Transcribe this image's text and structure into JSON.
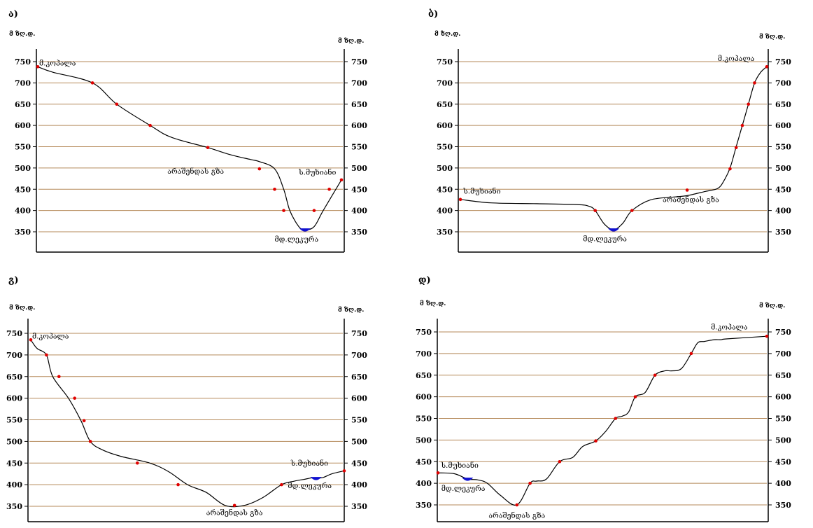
{
  "chart_data": [
    {
      "type": "line",
      "panel_label": "ა)",
      "unit_left": "მ ზღ.დ.",
      "unit_right": "მ ზღ.დ.",
      "yticks": [
        750,
        700,
        650,
        600,
        550,
        500,
        450,
        400,
        350
      ],
      "ylim": [
        310,
        780
      ],
      "xlim": [
        0,
        100
      ],
      "grid": true,
      "series": [
        {
          "x": [
            0,
            5,
            18,
            26,
            37,
            44,
            56,
            63,
            70,
            73,
            78,
            81,
            83,
            86,
            88,
            91,
            94,
            100
          ],
          "y": [
            738,
            725,
            700,
            650,
            600,
            572,
            548,
            532,
            520,
            515,
            498,
            450,
            400,
            362,
            355,
            362,
            400,
            472
          ]
        }
      ],
      "markers": [
        [
          0,
          738
        ],
        [
          18,
          700
        ],
        [
          26,
          650
        ],
        [
          37,
          600
        ],
        [
          56,
          548
        ],
        [
          73,
          498
        ],
        [
          78,
          450
        ],
        [
          81,
          400
        ],
        [
          91,
          400
        ],
        [
          96,
          450
        ],
        [
          100,
          472
        ]
      ],
      "water": [
        88,
        353
      ],
      "annotations": [
        {
          "text": "მ.კოპალა",
          "x": 0,
          "y": 738,
          "pos": "right-above"
        },
        {
          "text": "არაშენდას გზა",
          "x": 52,
          "y": 487,
          "pos": "center"
        },
        {
          "text": "ს.მუხიანი",
          "x": 86,
          "y": 484,
          "pos": "right"
        },
        {
          "text": "მდ.ლეკურა",
          "x": 78,
          "y": 327,
          "pos": "right"
        }
      ]
    },
    {
      "type": "line",
      "panel_label": "ბ)",
      "unit_left": "მ ზღ.დ.",
      "unit_right": "მ ზღ.დ.",
      "yticks": [
        750,
        700,
        650,
        600,
        550,
        500,
        450,
        400,
        350
      ],
      "ylim": [
        310,
        780
      ],
      "xlim": [
        0,
        100
      ],
      "grid": true,
      "series": [
        {
          "x": [
            0,
            10,
            25,
            38,
            42,
            44,
            47,
            50,
            53,
            56,
            62,
            70,
            74,
            80,
            84,
            86,
            88,
            90,
            92,
            94,
            96,
            98,
            100
          ],
          "y": [
            426,
            418,
            416,
            414,
            410,
            400,
            368,
            355,
            370,
            400,
            425,
            432,
            435,
            445,
            452,
            470,
            500,
            550,
            600,
            650,
            700,
            725,
            738
          ]
        }
      ],
      "markers": [
        [
          0,
          426
        ],
        [
          44,
          400
        ],
        [
          56,
          400
        ],
        [
          74,
          448
        ],
        [
          88,
          498
        ],
        [
          90,
          548
        ],
        [
          92,
          600
        ],
        [
          94,
          650
        ],
        [
          96,
          700
        ],
        [
          100,
          738
        ]
      ],
      "water": [
        50,
        353
      ],
      "annotations": [
        {
          "text": "ს.მუხიანი",
          "x": 1,
          "y": 440,
          "pos": "right"
        },
        {
          "text": "არაშენდას გზა",
          "x": 66,
          "y": 420,
          "pos": "right"
        },
        {
          "text": "მდ.ლეკურა",
          "x": 40,
          "y": 328,
          "pos": "right"
        },
        {
          "text": "მ.კოპალა",
          "x": 84,
          "y": 752,
          "pos": "right"
        }
      ]
    },
    {
      "type": "line",
      "panel_label": "გ)",
      "unit_left": "მ ზღ.დ.",
      "unit_right": "მ ზღ.დ.",
      "yticks": [
        750,
        700,
        650,
        600,
        550,
        500,
        450,
        400,
        350
      ],
      "ylim": [
        310,
        780
      ],
      "xlim": [
        0,
        100
      ],
      "grid": true,
      "series": [
        {
          "x": [
            0,
            2,
            5,
            7,
            12,
            16,
            19,
            23,
            29,
            38,
            44,
            50,
            56,
            62,
            68,
            74,
            80,
            84,
            87,
            90,
            93,
            96,
            100
          ],
          "y": [
            735,
            715,
            700,
            650,
            600,
            548,
            500,
            480,
            465,
            450,
            430,
            400,
            382,
            352,
            352,
            370,
            400,
            408,
            412,
            416,
            416,
            425,
            432
          ]
        }
      ],
      "markers": [
        [
          0,
          735
        ],
        [
          5,
          700
        ],
        [
          9,
          650
        ],
        [
          14,
          600
        ],
        [
          17,
          548
        ],
        [
          19,
          500
        ],
        [
          34,
          450
        ],
        [
          47,
          400
        ],
        [
          65,
          352
        ],
        [
          80,
          400
        ],
        [
          100,
          432
        ]
      ],
      "water": [
        91,
        413
      ],
      "annotations": [
        {
          "text": "მ.კოპალა",
          "x": 0,
          "y": 735,
          "pos": "right-above"
        },
        {
          "text": "არაშენდას გზა",
          "x": 65,
          "y": 330,
          "pos": "center"
        },
        {
          "text": "ს.მუხიანი",
          "x": 83,
          "y": 444,
          "pos": "right"
        },
        {
          "text": "მდ.ლეკურა",
          "x": 82,
          "y": 392,
          "pos": "right"
        }
      ]
    },
    {
      "type": "line",
      "panel_label": "დ)",
      "unit_left": "მ ზღ.დ.",
      "unit_right": "მ ზღ.დ.",
      "yticks": [
        750,
        700,
        650,
        600,
        550,
        500,
        450,
        400,
        350
      ],
      "ylim": [
        310,
        780
      ],
      "xlim": [
        0,
        100
      ],
      "grid": true,
      "series": [
        {
          "x": [
            0,
            5,
            9,
            12,
            15,
            19,
            24,
            28,
            30,
            33,
            37,
            41,
            44,
            48,
            51,
            54,
            56,
            58,
            60,
            63,
            66,
            69,
            71,
            74,
            77,
            79,
            81,
            84,
            86,
            88,
            100
          ],
          "y": [
            424,
            422,
            410,
            408,
            400,
            372,
            350,
            400,
            405,
            410,
            450,
            460,
            485,
            498,
            520,
            550,
            555,
            565,
            600,
            610,
            650,
            660,
            660,
            665,
            700,
            725,
            728,
            732,
            732,
            734,
            740
          ]
        }
      ],
      "markers": [
        [
          0,
          424
        ],
        [
          24,
          350
        ],
        [
          28,
          400
        ],
        [
          37,
          450
        ],
        [
          48,
          498
        ],
        [
          54,
          550
        ],
        [
          60,
          600
        ],
        [
          66,
          650
        ],
        [
          77,
          700
        ],
        [
          100,
          740
        ]
      ],
      "water": [
        9,
        408
      ],
      "annotations": [
        {
          "text": "ს.მუხიანი",
          "x": 1,
          "y": 436,
          "pos": "right"
        },
        {
          "text": "მდ.ლეკურა",
          "x": 1,
          "y": 382,
          "pos": "right"
        },
        {
          "text": "არაშენდას გზა",
          "x": 24,
          "y": 320,
          "pos": "center"
        },
        {
          "text": "მ.კოპალა",
          "x": 83,
          "y": 756,
          "pos": "right"
        }
      ]
    }
  ]
}
